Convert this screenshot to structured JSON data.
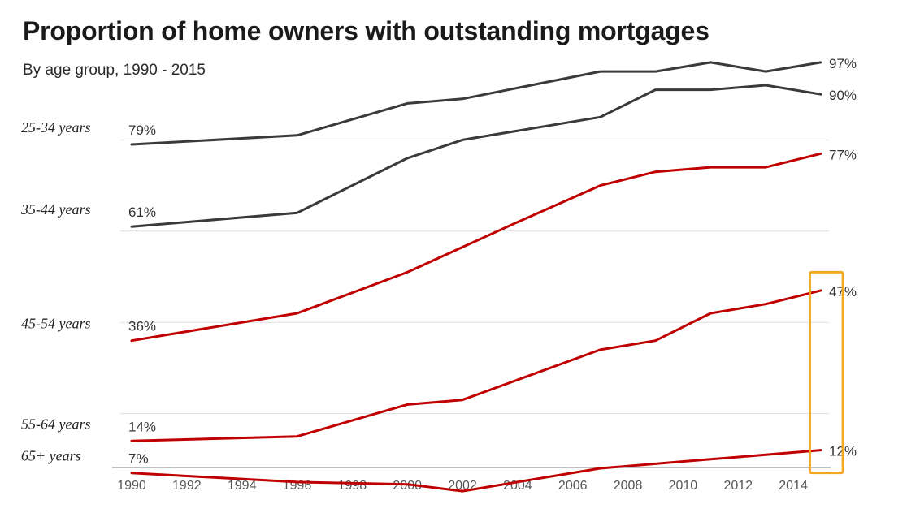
{
  "chart_data": {
    "type": "line",
    "title": "Proportion of home owners with outstanding mortgages",
    "subtitle": "By age group, 1990 - 2015",
    "xlabel": "",
    "ylabel": "",
    "xlim": [
      1990,
      2015
    ],
    "ylim": [
      0,
      100
    ],
    "x_ticks": [
      "1990",
      "1992",
      "1994",
      "1996",
      "1998",
      "2000",
      "2002",
      "2004",
      "2006",
      "2008",
      "2010",
      "2012",
      "2014"
    ],
    "grid": true,
    "series": [
      {
        "name": "25-34 years",
        "color": "#3a3a3a",
        "start_label": "79%",
        "end_label": "97%",
        "x": [
          1990,
          1996,
          2000,
          2002,
          2007,
          2009,
          2011,
          2013,
          2015
        ],
        "y": [
          79,
          81,
          88,
          89,
          95,
          95,
          97,
          95,
          97
        ]
      },
      {
        "name": "35-44 years",
        "color": "#3a3a3a",
        "start_label": "61%",
        "end_label": "90%",
        "x": [
          1990,
          1996,
          2000,
          2002,
          2007,
          2009,
          2011,
          2013,
          2015
        ],
        "y": [
          61,
          64,
          76,
          80,
          85,
          91,
          91,
          92,
          90
        ]
      },
      {
        "name": "45-54 years",
        "color": "#c00000",
        "start_label": "36%",
        "end_label": "77%",
        "x": [
          1990,
          1996,
          2000,
          2004,
          2007,
          2009,
          2011,
          2013,
          2015
        ],
        "y": [
          36,
          42,
          51,
          62,
          70,
          73,
          74,
          74,
          77
        ]
      },
      {
        "name": "55-64 years",
        "color": "#c00000",
        "start_label": "14%",
        "end_label": "47%",
        "x": [
          1990,
          1996,
          2000,
          2002,
          2007,
          2009,
          2011,
          2013,
          2015
        ],
        "y": [
          14,
          15,
          22,
          23,
          34,
          36,
          42,
          44,
          47
        ]
      },
      {
        "name": "65+ years",
        "color": "#c00000",
        "start_label": "7%",
        "end_label": "12%",
        "x": [
          1990,
          1996,
          2000,
          2002,
          2007,
          2009,
          2011,
          2013,
          2015
        ],
        "y": [
          7,
          5,
          4.5,
          3,
          8,
          9,
          10,
          11,
          12
        ]
      }
    ],
    "highlight": {
      "x_range": [
        2014.6,
        2015.8
      ],
      "y_range": [
        7,
        51
      ],
      "color": "#f2a922"
    }
  }
}
